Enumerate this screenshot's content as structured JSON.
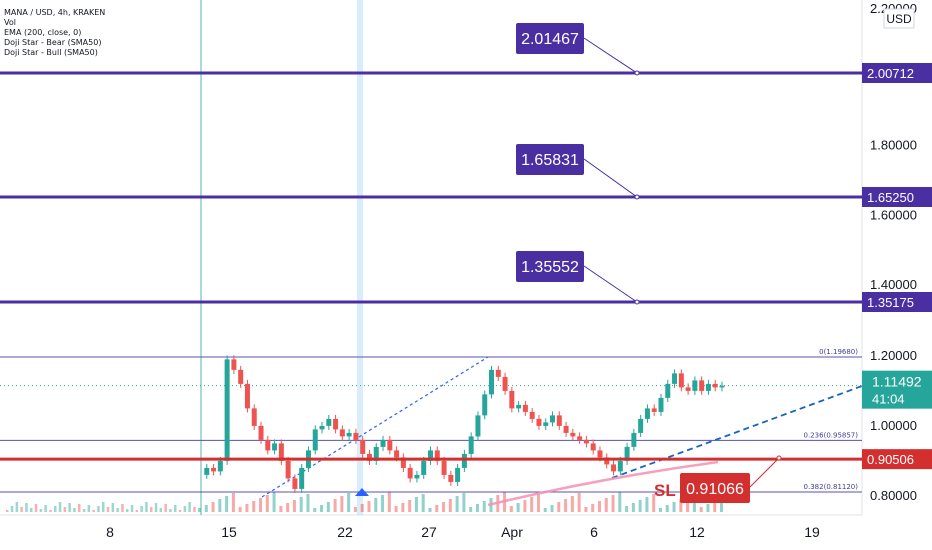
{
  "legend": {
    "symbol": "MANA / USD, 4h, KRAKEN",
    "indicators": [
      "Vol",
      "EMA (200, close, 0)",
      "Doji Star - Bear (SMA50)",
      "Doji Star - Bull (SMA50)"
    ]
  },
  "currency": "USD",
  "chart_data": {
    "type": "line",
    "x_ticks": [
      "8",
      "15",
      "22",
      "27",
      "Apr",
      "6",
      "12",
      "19"
    ],
    "y_ticks": [
      "0.80000",
      "1.00000",
      "1.20000",
      "1.40000",
      "1.60000",
      "1.80000",
      "2.20000"
    ],
    "ylim": [
      0.75,
      2.2
    ],
    "grid": false,
    "horizontal_levels": [
      {
        "price": 2.00712,
        "label": "2.00712",
        "color": "#4a2fa3"
      },
      {
        "price": 1.6525,
        "label": "1.65250",
        "color": "#4a2fa3"
      },
      {
        "price": 1.35175,
        "label": "1.35175",
        "color": "#4a2fa3"
      },
      {
        "price": 0.90506,
        "label": "0.90506",
        "color": "#d32f2f"
      }
    ],
    "target_callouts": [
      "2.01467",
      "1.65831",
      "1.35552"
    ],
    "fib_levels": [
      {
        "price": 1.1968,
        "label": "0(1.19680)"
      },
      {
        "price": 0.95857,
        "label": "0.236(0.95857)"
      },
      {
        "price": 0.8112,
        "label": "0.382(0.81120)"
      }
    ],
    "stop_loss": {
      "tag": "SL",
      "value": "0.91066"
    },
    "current_price": {
      "value": "1.11492",
      "countdown": "41:04",
      "color": "#26a69a"
    },
    "price_series": [
      0.86,
      0.88,
      0.87,
      0.9,
      1.19,
      1.16,
      1.12,
      1.05,
      1.0,
      0.96,
      0.93,
      0.95,
      0.9,
      0.85,
      0.82,
      0.88,
      0.93,
      0.99,
      1.0,
      1.02,
      0.99,
      0.97,
      0.98,
      0.96,
      0.92,
      0.9,
      0.94,
      0.96,
      0.93,
      0.91,
      0.88,
      0.85,
      0.86,
      0.9,
      0.93,
      0.9,
      0.86,
      0.84,
      0.88,
      0.92,
      0.97,
      1.03,
      1.09,
      1.16,
      1.14,
      1.1,
      1.05,
      1.06,
      1.04,
      1.02,
      1.0,
      1.01,
      1.03,
      1.0,
      0.98,
      0.97,
      0.96,
      0.95,
      0.93,
      0.91,
      0.89,
      0.87,
      0.9,
      0.94,
      0.98,
      1.02,
      1.05,
      1.04,
      1.08,
      1.12,
      1.15,
      1.11,
      1.1,
      1.13,
      1.1,
      1.12,
      1.11,
      1.115
    ]
  }
}
